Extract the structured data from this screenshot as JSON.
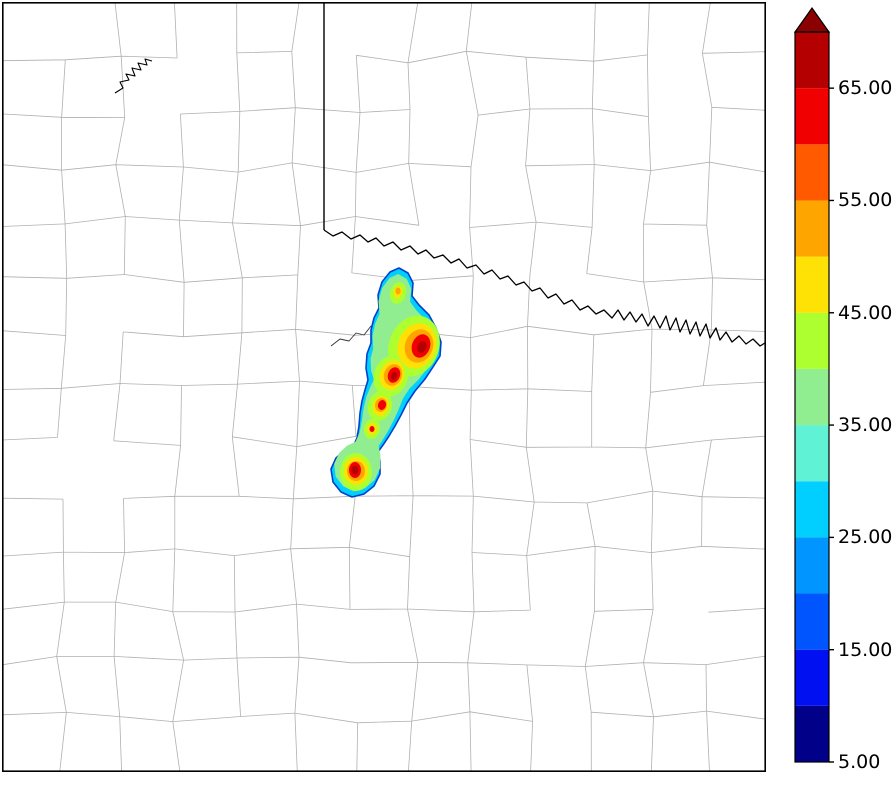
{
  "figure": {
    "background": "#ffffff"
  },
  "colorbar": {
    "min": 5,
    "max": 70,
    "interval": 5,
    "extend": "max",
    "orientation": "vertical",
    "position": "right",
    "arrow_color": "#8B0000",
    "ticks": [
      {
        "label": "65.00",
        "value": 65
      },
      {
        "label": "55.00",
        "value": 55
      },
      {
        "label": "45.00",
        "value": 45
      },
      {
        "label": "35.00",
        "value": 35
      },
      {
        "label": "25.00",
        "value": 25
      },
      {
        "label": "15.00",
        "value": 15
      },
      {
        "label": "5.00",
        "value": 5
      }
    ],
    "segments": [
      {
        "from": 5,
        "to": 10,
        "color": "#000089"
      },
      {
        "from": 10,
        "to": 15,
        "color": "#0010F0"
      },
      {
        "from": 15,
        "to": 20,
        "color": "#0055FF"
      },
      {
        "from": 20,
        "to": 25,
        "color": "#0095FF"
      },
      {
        "from": 25,
        "to": 30,
        "color": "#00CFFF"
      },
      {
        "from": 30,
        "to": 35,
        "color": "#5FF2D5"
      },
      {
        "from": 35,
        "to": 40,
        "color": "#90EE90"
      },
      {
        "from": 40,
        "to": 45,
        "color": "#ADFF2F"
      },
      {
        "from": 45,
        "to": 50,
        "color": "#FFE205"
      },
      {
        "from": 50,
        "to": 55,
        "color": "#FFA500"
      },
      {
        "from": 55,
        "to": 60,
        "color": "#FF5A00"
      },
      {
        "from": 60,
        "to": 65,
        "color": "#F00000"
      },
      {
        "from": 65,
        "to": 70,
        "color": "#B40000"
      }
    ]
  },
  "map": {
    "county_line_color": "#b0b0b0",
    "state_border_color": "#000000",
    "storm_outline_color": "#0040D0"
  },
  "chart_data": {
    "type": "heatmap",
    "title": "",
    "colorbar_tick_labels": [
      "65.00",
      "55.00",
      "45.00",
      "35.00",
      "25.00",
      "15.00",
      "5.00"
    ],
    "value_range": [
      5,
      70
    ],
    "contour_interval": 5,
    "legend_position": "right",
    "grid": false,
    "storm_cells": [
      {
        "x_frac": 0.549,
        "y_frac": 0.447,
        "peak_value": 70
      },
      {
        "x_frac": 0.513,
        "y_frac": 0.485,
        "peak_value": 68
      },
      {
        "x_frac": 0.497,
        "y_frac": 0.524,
        "peak_value": 63
      },
      {
        "x_frac": 0.484,
        "y_frac": 0.555,
        "peak_value": 55
      },
      {
        "x_frac": 0.462,
        "y_frac": 0.609,
        "peak_value": 70
      }
    ],
    "notes": "Elongated NE-SW multicore storm shaded 5-70 with extend-max arrow, over a county-outline base map with a state-border river"
  }
}
